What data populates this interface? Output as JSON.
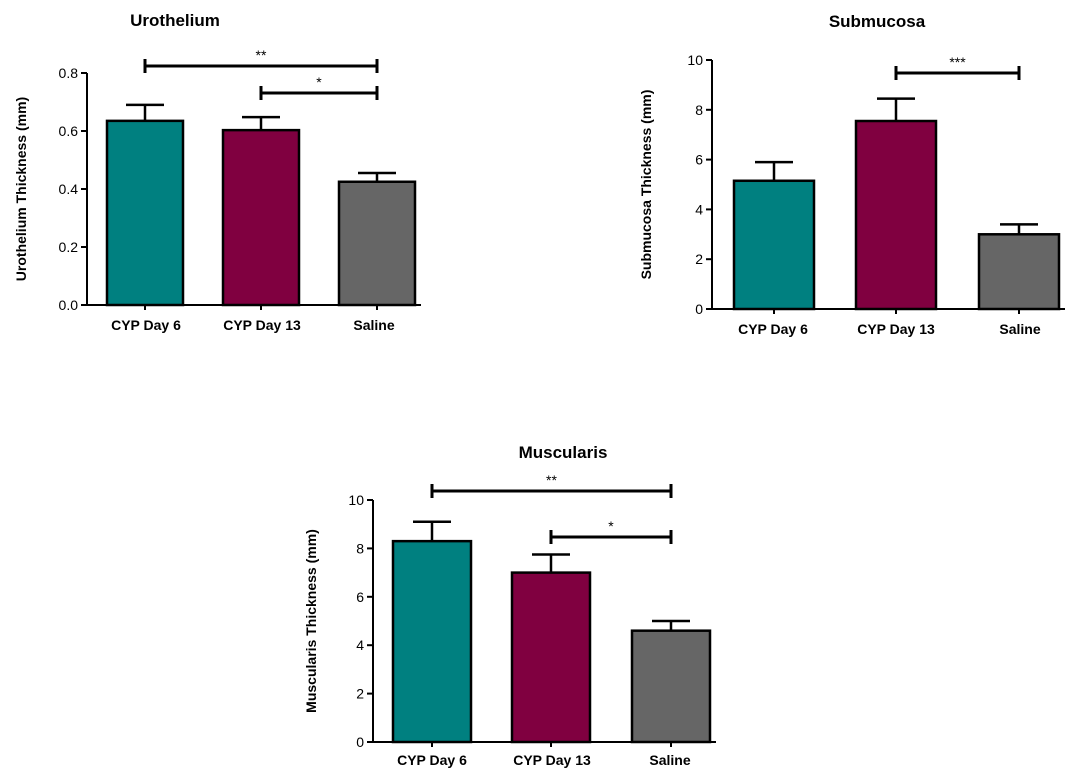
{
  "chart_data": [
    {
      "type": "bar",
      "title": "Urothelium",
      "ylabel": "Urothelium Thickness (mm)",
      "categories": [
        "CYP Day 6",
        "CYP Day 13",
        "Saline"
      ],
      "values": [
        0.635,
        0.603,
        0.425
      ],
      "errors": [
        0.055,
        0.045,
        0.03
      ],
      "ylim": [
        0,
        0.8
      ],
      "yticks": [
        "0.0",
        "0.2",
        "0.4",
        "0.6",
        "0.8"
      ],
      "ytick_values": [
        0,
        0.2,
        0.4,
        0.6,
        0.8
      ],
      "colors": [
        "#008080",
        "#800040",
        "#666666"
      ],
      "significance": [
        {
          "from": 0,
          "to": 2,
          "label": "**"
        },
        {
          "from": 1,
          "to": 2,
          "label": "*"
        }
      ]
    },
    {
      "type": "bar",
      "title": "Submucosa",
      "ylabel": "Submucosa Thickness (mm)",
      "categories": [
        "CYP Day 6",
        "CYP Day 13",
        "Saline"
      ],
      "values": [
        5.15,
        7.55,
        3.0
      ],
      "errors": [
        0.75,
        0.9,
        0.4
      ],
      "ylim": [
        0,
        10
      ],
      "yticks": [
        "0",
        "2",
        "4",
        "6",
        "8",
        "10"
      ],
      "ytick_values": [
        0,
        2,
        4,
        6,
        8,
        10
      ],
      "colors": [
        "#008080",
        "#800040",
        "#666666"
      ],
      "significance": [
        {
          "from": 1,
          "to": 2,
          "label": "***"
        }
      ]
    },
    {
      "type": "bar",
      "title": "Muscularis",
      "ylabel": "Muscularis Thickness (mm)",
      "categories": [
        "CYP Day 6",
        "CYP Day 13",
        "Saline"
      ],
      "values": [
        8.3,
        7.0,
        4.6
      ],
      "errors": [
        0.8,
        0.75,
        0.4
      ],
      "ylim": [
        0,
        10
      ],
      "yticks": [
        "0",
        "2",
        "4",
        "6",
        "8",
        "10"
      ],
      "ytick_values": [
        0,
        2,
        4,
        6,
        8,
        10
      ],
      "colors": [
        "#008080",
        "#800040",
        "#666666"
      ],
      "significance": [
        {
          "from": 0,
          "to": 2,
          "label": "**"
        },
        {
          "from": 1,
          "to": 2,
          "label": "*"
        }
      ]
    }
  ]
}
